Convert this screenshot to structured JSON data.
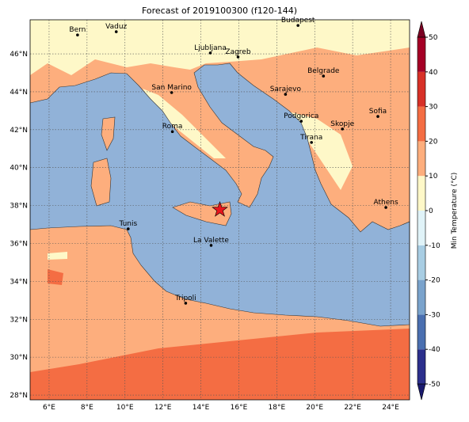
{
  "title": "Forecast of 2019100300 (f120-144)",
  "map": {
    "xlim": [
      5,
      25
    ],
    "ylim": [
      27.75,
      47.8
    ],
    "xticks": [
      {
        "value": 6,
        "label": "6°E"
      },
      {
        "value": 8,
        "label": "8°E"
      },
      {
        "value": 10,
        "label": "10°E"
      },
      {
        "value": 12,
        "label": "12°E"
      },
      {
        "value": 14,
        "label": "14°E"
      },
      {
        "value": 16,
        "label": "16°E"
      },
      {
        "value": 18,
        "label": "18°E"
      },
      {
        "value": 20,
        "label": "20°E"
      },
      {
        "value": 22,
        "label": "22°E"
      },
      {
        "value": 24,
        "label": "24°E"
      }
    ],
    "yticks": [
      {
        "value": 28,
        "label": "28°N"
      },
      {
        "value": 30,
        "label": "30°N"
      },
      {
        "value": 32,
        "label": "32°N"
      },
      {
        "value": 34,
        "label": "34°N"
      },
      {
        "value": 36,
        "label": "36°N"
      },
      {
        "value": 38,
        "label": "38°N"
      },
      {
        "value": 40,
        "label": "40°N"
      },
      {
        "value": 42,
        "label": "42°N"
      },
      {
        "value": 44,
        "label": "44°N"
      },
      {
        "value": 46,
        "label": "46°N"
      }
    ],
    "cities": [
      {
        "name": "Bern",
        "lon": 7.5,
        "lat": 47.0
      },
      {
        "name": "Vaduz",
        "lon": 9.54,
        "lat": 47.17
      },
      {
        "name": "Budapest",
        "lon": 19.12,
        "lat": 47.5
      },
      {
        "name": "Ljubljana",
        "lon": 14.5,
        "lat": 46.05
      },
      {
        "name": "Zagreb",
        "lon": 15.96,
        "lat": 45.84
      },
      {
        "name": "Belgrade",
        "lon": 20.46,
        "lat": 44.83
      },
      {
        "name": "San Marino",
        "lon": 12.46,
        "lat": 43.96
      },
      {
        "name": "Sarajevo",
        "lon": 18.46,
        "lat": 43.87
      },
      {
        "name": "Sofia",
        "lon": 23.33,
        "lat": 42.7
      },
      {
        "name": "Podgorica",
        "lon": 19.29,
        "lat": 42.45
      },
      {
        "name": "Skopje",
        "lon": 21.46,
        "lat": 42.04
      },
      {
        "name": "Roma",
        "lon": 12.5,
        "lat": 41.9
      },
      {
        "name": "Tirana",
        "lon": 19.83,
        "lat": 41.33
      },
      {
        "name": "Athens",
        "lon": 23.75,
        "lat": 37.9
      },
      {
        "name": "Tunis",
        "lon": 10.17,
        "lat": 36.77
      },
      {
        "name": "La Valette",
        "lon": 14.54,
        "lat": 35.9
      },
      {
        "name": "Tripoli",
        "lon": 13.2,
        "lat": 32.85
      }
    ],
    "marker": {
      "lon": 15.0,
      "lat": 37.78,
      "color": "#e8141c"
    }
  },
  "colorbar": {
    "label": "Min Temperature (°C)",
    "lim": [
      -50,
      50
    ],
    "ticks": [
      -50,
      -40,
      -30,
      -20,
      -10,
      0,
      10,
      20,
      30,
      40,
      50
    ],
    "colors": [
      "#2b2f8c",
      "#4a6fb0",
      "#7aa3cc",
      "#a8cde3",
      "#e0f3f8",
      "#fef8c8",
      "#fdae7d",
      "#f46d43",
      "#d73027",
      "#a50026"
    ],
    "under": "#1a1a6e",
    "over": "#7a0022"
  }
}
